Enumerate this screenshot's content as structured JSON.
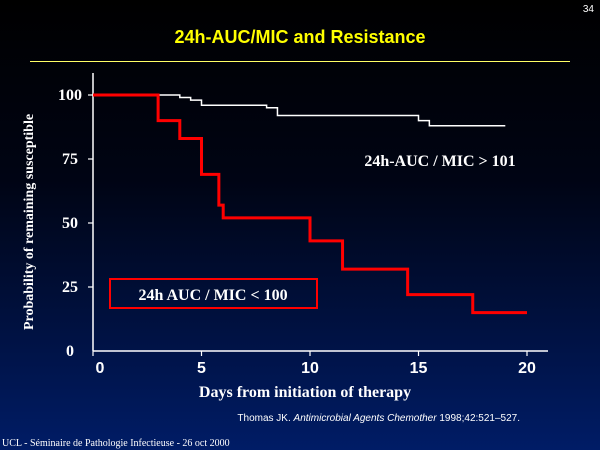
{
  "slide_number": "34",
  "title": "24h-AUC/MIC and Resistance",
  "citation": {
    "authors": "Thomas JK.",
    "journal": "Antimicrobial Agents Chemother",
    "details": "1998;42:521–527."
  },
  "footer": "UCL - Séminaire de Pathologie Infectieuse - 26 oct 2000",
  "colors": {
    "title": "#ffff00",
    "high_series": "#ffffff",
    "low_series": "#ff0000",
    "axes": "#ffffff"
  },
  "chart_data": {
    "type": "line",
    "step": true,
    "xlabel": "Days from initiation of therapy",
    "ylabel": "Probability of remaining susceptible",
    "xlim": [
      0,
      20
    ],
    "ylim": [
      0,
      100
    ],
    "x_ticks": [
      0,
      5,
      10,
      15,
      20
    ],
    "x_tick_labels": [
      "0",
      "5",
      "10",
      "15",
      "20"
    ],
    "y_ticks": [
      0,
      25,
      50,
      75,
      100
    ],
    "y_tick_labels": [
      "0",
      "25",
      "50",
      "75",
      "100"
    ],
    "grid": false,
    "series": [
      {
        "name": "24h-AUC / MIC > 101",
        "color": "#ffffff",
        "label_box": false,
        "x": [
          0,
          3,
          4,
          4.5,
          5,
          8,
          8.5,
          15,
          15.5,
          19
        ],
        "y": [
          100,
          100,
          99,
          98,
          96,
          95,
          92,
          90,
          88,
          88
        ]
      },
      {
        "name": "24h AUC / MIC < 100",
        "color": "#ff0000",
        "label_box": true,
        "x": [
          0,
          3,
          4,
          5,
          5.8,
          6,
          10,
          11.5,
          14.5,
          17.5,
          20
        ],
        "y": [
          100,
          90,
          83,
          69,
          57,
          52,
          43,
          32,
          22,
          15,
          15
        ]
      }
    ]
  }
}
